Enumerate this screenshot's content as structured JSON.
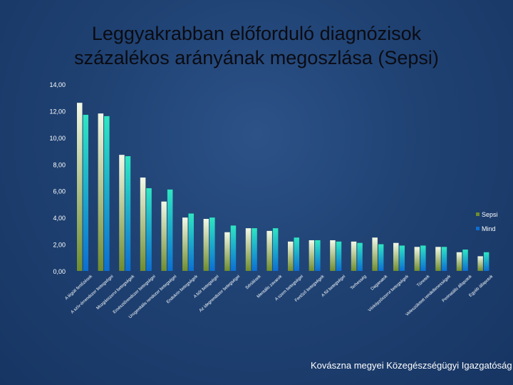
{
  "title_line1": "Leggyakrabban előforduló diagnózisok",
  "title_line2": "százalékos arányának megoszlása (Sepsi)",
  "footer": "Kovászna megyei Közegészségügyi Igazgatóság",
  "colors": {
    "background": "#1f4273",
    "title_text": "#0b0b12",
    "axis_text": "#ffffff",
    "sepsi_light": "#f2f8e6",
    "sepsi_dark": "#6f8d2e",
    "mind_light": "#2ee6c2",
    "mind_dark": "#0b6fd3"
  },
  "chart_data": {
    "type": "bar",
    "ylim": [
      0,
      14
    ],
    "yticks": [
      "0,00",
      "2,00",
      "4,00",
      "6,00",
      "8,00",
      "10,00",
      "12,00",
      "14,00"
    ],
    "grid": false,
    "legend_position": "right",
    "categories": [
      "A légúti fertőzések",
      "A szív-érrendszer betegségei",
      "Mozgásszervi betegségek",
      "Emésztőrendszer betegségei",
      "Urogenitális rendszer betegségei",
      "Endokrin betegségek",
      "A bőr betegségei",
      "Az idegrendszer betegségei",
      "Sérülések",
      "Mentális zavarok",
      "A szem betegségei",
      "Fertőző betegségek",
      "A fül betegségei",
      "Terhesség",
      "Daganatok",
      "Vérképzőszervi betegségek",
      "Tünetek",
      "Veleszületett rendellenességek",
      "Perinatális állapotok",
      "Egyéb állapotok"
    ],
    "series": [
      {
        "name": "Sepsi",
        "values": [
          12.6,
          11.8,
          8.7,
          7.0,
          5.2,
          4.0,
          3.9,
          2.9,
          3.2,
          3.0,
          2.2,
          2.3,
          2.3,
          2.2,
          2.5,
          2.1,
          1.8,
          1.8,
          1.4,
          1.1
        ]
      },
      {
        "name": "Mind",
        "values": [
          11.7,
          11.6,
          8.6,
          6.2,
          6.1,
          4.3,
          4.0,
          3.4,
          3.2,
          3.2,
          2.5,
          2.3,
          2.2,
          2.1,
          2.0,
          1.9,
          1.9,
          1.8,
          1.6,
          1.4
        ]
      }
    ]
  }
}
